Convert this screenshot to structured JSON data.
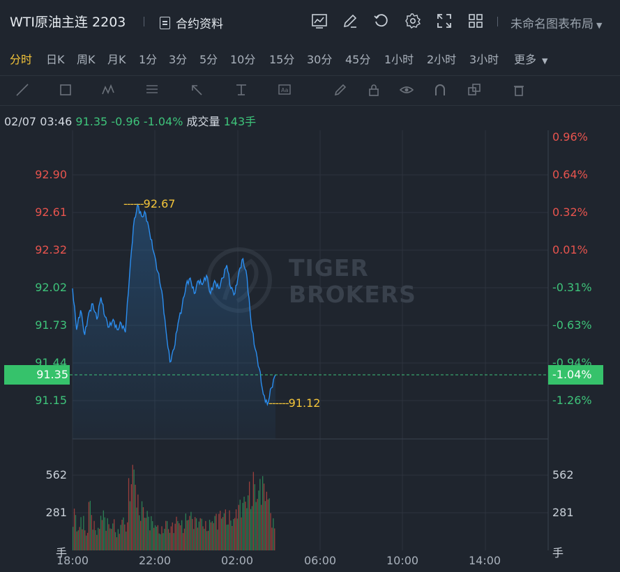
{
  "header": {
    "title": "WTI原油主连 2203",
    "contract_info": "合约资料",
    "layout_label": "未命名图表布局"
  },
  "tabs": [
    "分时",
    "日K",
    "周K",
    "月K",
    "1分",
    "3分",
    "5分",
    "10分",
    "15分",
    "30分",
    "45分",
    "1小时",
    "2小时",
    "3小时",
    "更多"
  ],
  "active_tab": "分时",
  "info": {
    "datetime": "02/07 03:46",
    "price": "91.35",
    "change": "-0.96",
    "change_pct": "-1.04%",
    "volume_label": "成交量",
    "volume": "143手"
  },
  "watermark": [
    "TIGER",
    "BROKERS"
  ],
  "colors": {
    "up": "#e8544e",
    "down": "#3ec37a",
    "line": "#2b8ef0",
    "tag": "#36c26b",
    "marker": "#f4c53a"
  },
  "chart_data": {
    "type": "line",
    "price_axis": [
      "92.90",
      "92.61",
      "92.32",
      "92.02",
      "91.73",
      "91.44",
      "91.15"
    ],
    "pct_axis": [
      "0.96%",
      "0.64%",
      "0.32%",
      "0.01%",
      "-0.31%",
      "-0.63%",
      "-0.94%",
      "-1.26%"
    ],
    "current_price": "91.35",
    "current_pct": "-1.04%",
    "high_marker": "92.67",
    "low_marker": "91.12",
    "volume_axis_left": [
      "562",
      "281",
      "手"
    ],
    "volume_axis_right": [
      "562",
      "281",
      "手"
    ],
    "x_labels": [
      "18:00",
      "22:00",
      "02:00",
      "06:00",
      "10:00",
      "14:00"
    ],
    "series": [
      {
        "values": [
          92.02,
          91.7,
          91.85,
          91.66,
          91.83,
          91.9,
          91.78,
          91.95,
          91.8,
          91.72,
          91.78,
          91.7,
          91.75,
          91.68,
          92.1,
          92.5,
          92.67,
          92.58,
          92.6,
          92.45,
          92.3,
          92.15,
          92.0,
          91.7,
          91.45,
          91.55,
          91.75,
          91.88,
          92.05,
          92.1,
          91.98,
          92.08,
          92.05,
          92.12,
          91.98,
          92.08,
          92.02,
          92.1,
          92.2,
          92.02,
          91.98,
          92.15,
          92.25,
          92.1,
          91.75,
          91.55,
          91.4,
          91.2,
          91.12,
          91.25,
          91.35
        ]
      }
    ],
    "volume": [
      320,
      180,
      260,
      150,
      400,
      220,
      180,
      300,
      250,
      200,
      240,
      160,
      260,
      210,
      540,
      680,
      420,
      380,
      300,
      260,
      220,
      200,
      180,
      240,
      180,
      210,
      260,
      230,
      280,
      300,
      250,
      240,
      260,
      220,
      240,
      260,
      280,
      300,
      320,
      300,
      260,
      340,
      380,
      420,
      520,
      600,
      460,
      560,
      500,
      420,
      240
    ]
  }
}
